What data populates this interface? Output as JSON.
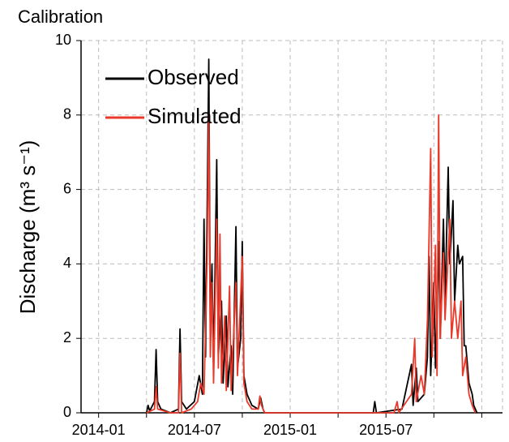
{
  "chart_data": {
    "type": "line",
    "title": "Calibration",
    "y_label": "Discharge (m³ s⁻¹)",
    "xlim": [
      -1.1,
      25.3
    ],
    "xticks": [
      {
        "value": 0,
        "label": "2014-01"
      },
      {
        "value": 6,
        "label": "2014-07"
      },
      {
        "value": 12,
        "label": "2015-01"
      },
      {
        "value": 18,
        "label": "2015-07"
      }
    ],
    "xminorticks": [
      3,
      9,
      15,
      21,
      24
    ],
    "ylim": [
      0,
      10
    ],
    "yticks": [
      0,
      2,
      4,
      6,
      8,
      10
    ],
    "grid": true,
    "legend": "upper-left",
    "series": [
      {
        "name": "Observed",
        "color": "#000000",
        "x": [
          3.0,
          3.1,
          3.2,
          3.5,
          3.6,
          3.7,
          3.9,
          4.5,
          5.0,
          5.1,
          5.2,
          5.5,
          6.0,
          6.3,
          6.5,
          6.6,
          6.7,
          6.9,
          7.0,
          7.1,
          7.2,
          7.4,
          7.5,
          7.7,
          7.8,
          8.0,
          8.1,
          8.3,
          8.4,
          8.6,
          8.7,
          8.9,
          9.0,
          9.1,
          9.3,
          9.6,
          10.0,
          10.15,
          10.3,
          10.4,
          17.2,
          17.3,
          17.4,
          19.0,
          19.6,
          19.7,
          19.9,
          20.0,
          20.4,
          20.6,
          20.7,
          20.8,
          21.0,
          21.1,
          21.3,
          21.4,
          21.6,
          21.7,
          21.9,
          22.0,
          22.2,
          22.3,
          22.5,
          22.6,
          22.8,
          22.9,
          23.0,
          23.2,
          23.4,
          23.5,
          23.7
        ],
        "values": [
          0,
          0.2,
          0.05,
          0.3,
          1.7,
          0.3,
          0.1,
          0,
          0.1,
          2.25,
          0.3,
          0.1,
          0.3,
          1.0,
          0.5,
          5.2,
          1.5,
          9.5,
          2.0,
          4.0,
          1.2,
          6.8,
          1.5,
          3.0,
          0.8,
          2.6,
          0.7,
          1.8,
          0.5,
          5.0,
          1.2,
          2.0,
          4.6,
          1.0,
          0.5,
          0.2,
          0.1,
          0.4,
          0.1,
          0,
          0,
          0.3,
          0,
          0.1,
          1.3,
          0.2,
          1.2,
          0.3,
          0.5,
          1.5,
          4.2,
          1.0,
          3.5,
          1.2,
          4.6,
          2.0,
          5.2,
          3.0,
          6.6,
          4.0,
          5.7,
          3.0,
          4.5,
          4.0,
          4.2,
          1.8,
          1.8,
          0.8,
          0.5,
          0.2,
          0
        ]
      },
      {
        "name": "Simulated",
        "color": "#e8392a",
        "x": [
          3.0,
          3.5,
          3.6,
          3.7,
          4.5,
          5.0,
          5.1,
          5.2,
          5.8,
          6.2,
          6.4,
          6.6,
          6.8,
          6.9,
          7.0,
          7.1,
          7.2,
          7.4,
          7.5,
          7.6,
          7.7,
          7.9,
          8.0,
          8.2,
          8.3,
          8.6,
          8.7,
          9.0,
          9.1,
          9.3,
          9.6,
          10.0,
          10.1,
          10.2,
          10.4,
          18.5,
          18.7,
          18.8,
          19.6,
          19.8,
          19.9,
          20.2,
          20.4,
          20.6,
          20.8,
          20.9,
          21.1,
          21.2,
          21.3,
          21.4,
          21.6,
          21.7,
          22.0,
          22.1,
          22.3,
          22.5,
          22.7,
          22.8,
          23.0,
          23.2,
          23.4,
          23.6
        ],
        "values": [
          0,
          0.1,
          0.7,
          0.1,
          0,
          0,
          1.6,
          0,
          0.1,
          0.3,
          0.8,
          0.5,
          4.2,
          8.0,
          1.5,
          3.5,
          0.8,
          5.2,
          1.2,
          4.8,
          0.8,
          2.6,
          0.6,
          3.4,
          0.6,
          3.5,
          1.0,
          4.2,
          0.8,
          0.3,
          0.1,
          0.1,
          0.45,
          0.2,
          0,
          0,
          0.3,
          0,
          0.5,
          2.0,
          0.3,
          1.0,
          0.5,
          2.5,
          7.1,
          1.5,
          4.5,
          1.0,
          8.0,
          2.0,
          4.3,
          2.5,
          5.2,
          2.0,
          3.0,
          2.0,
          3.0,
          1.0,
          1.5,
          0.5,
          0.2,
          0
        ]
      }
    ]
  }
}
